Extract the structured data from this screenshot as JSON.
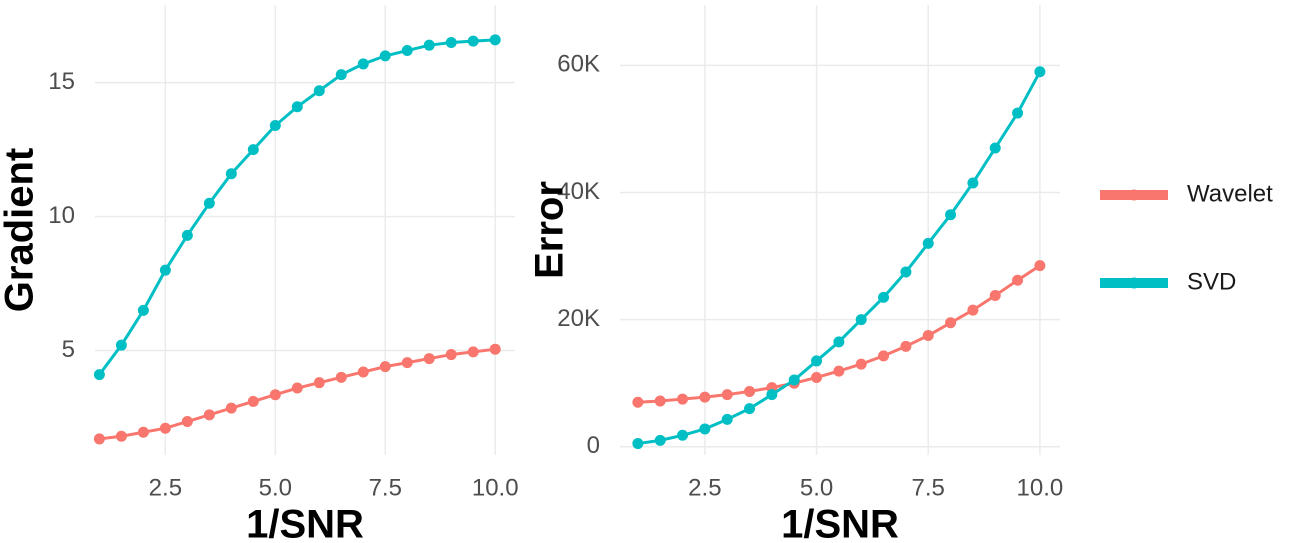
{
  "chart_data": [
    {
      "type": "line",
      "xlabel": "1/SNR",
      "ylabel": "Gradient",
      "grid": true,
      "x": [
        1,
        1.5,
        2,
        2.5,
        3,
        3.5,
        4,
        4.5,
        5,
        5.5,
        6,
        6.5,
        7,
        7.5,
        8,
        8.5,
        9,
        9.5,
        10
      ],
      "xlim": [
        0.9,
        10.45
      ],
      "xticks": [
        {
          "value": 2.5,
          "label": "2.5"
        },
        {
          "value": 5,
          "label": "5.0"
        },
        {
          "value": 7.5,
          "label": "7.5"
        },
        {
          "value": 10,
          "label": "10.0"
        }
      ],
      "ylim": [
        1.1,
        17.9
      ],
      "yticks": [
        5,
        10,
        15
      ],
      "series": [
        {
          "name": "Wavelet",
          "color": "#f8766d",
          "values": [
            1.7,
            1.8,
            1.95,
            2.1,
            2.35,
            2.6,
            2.85,
            3.1,
            3.35,
            3.6,
            3.8,
            4.0,
            4.2,
            4.4,
            4.55,
            4.7,
            4.85,
            4.95,
            5.05
          ]
        },
        {
          "name": "SVD",
          "color": "#00bfc4",
          "values": [
            4.1,
            5.2,
            6.5,
            8.0,
            9.3,
            10.5,
            11.6,
            12.5,
            13.4,
            14.1,
            14.7,
            15.3,
            15.7,
            16.0,
            16.2,
            16.4,
            16.5,
            16.55,
            16.6
          ]
        }
      ]
    },
    {
      "type": "line",
      "xlabel": "1/SNR",
      "ylabel": "Error",
      "grid": true,
      "x": [
        1,
        1.5,
        2,
        2.5,
        3,
        3.5,
        4,
        4.5,
        5,
        5.5,
        6,
        6.5,
        7,
        7.5,
        8,
        8.5,
        9,
        9.5,
        10
      ],
      "xlim": [
        0.6,
        10.45
      ],
      "xticks": [
        {
          "value": 2.5,
          "label": "2.5"
        },
        {
          "value": 5,
          "label": "5.0"
        },
        {
          "value": 7.5,
          "label": "7.5"
        },
        {
          "value": 10,
          "label": "10.0"
        }
      ],
      "ylim": [
        -1300,
        69500
      ],
      "yticks": [
        0,
        {
          "value": 20000,
          "label": "20K"
        },
        {
          "value": 40000,
          "label": "40K"
        },
        {
          "value": 60000,
          "label": "60K"
        }
      ],
      "series": [
        {
          "color": "#f8766d",
          "values": [
            7000,
            7200,
            7500,
            7800,
            8200,
            8700,
            9300,
            10000,
            10900,
            11900,
            13000,
            14300,
            15800,
            17500,
            19500,
            21500,
            23800,
            26200,
            28500
          ]
        },
        {
          "color": "#00bfc4",
          "values": [
            500,
            1000,
            1800,
            2800,
            4300,
            6000,
            8200,
            10500,
            13500,
            16500,
            20000,
            23500,
            27500,
            32000,
            36500,
            41500,
            47000,
            52500,
            59000
          ]
        }
      ]
    }
  ]
}
